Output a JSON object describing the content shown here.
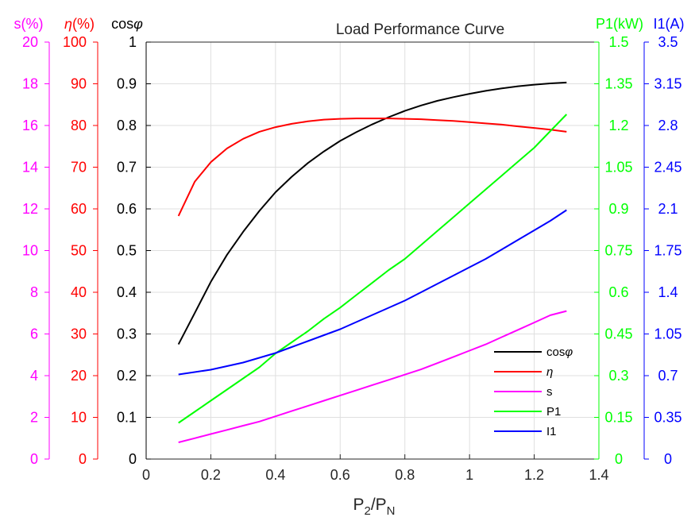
{
  "chart_data": {
    "type": "line",
    "title": "Load Performance Curve",
    "xlabel": "P",
    "xlabel_sub1": "2",
    "xlabel_sep": "/P",
    "xlabel_sub2": "N",
    "xlim": [
      0,
      1.4
    ],
    "xticks": [
      "0",
      "0.2",
      "0.4",
      "0.6",
      "0.8",
      "1",
      "1.2",
      "1.4"
    ],
    "grid": true,
    "legend_position": "bottom-right",
    "axes": {
      "s": {
        "label": "s(%)",
        "color": "#ff00ff",
        "range": [
          0,
          20
        ],
        "ticks": [
          "0",
          "2",
          "4",
          "6",
          "8",
          "10",
          "12",
          "14",
          "16",
          "18",
          "20"
        ]
      },
      "eta": {
        "label_symbol": "η",
        "label_suffix": "(%)",
        "color": "#ff0000",
        "range": [
          0,
          100
        ],
        "ticks": [
          "0",
          "10",
          "20",
          "30",
          "40",
          "50",
          "60",
          "70",
          "80",
          "90",
          "100"
        ]
      },
      "cosphi": {
        "label_prefix": "cos",
        "label_symbol": "φ",
        "color": "#000000",
        "range": [
          0,
          1
        ],
        "ticks": [
          "0",
          "0.1",
          "0.2",
          "0.3",
          "0.4",
          "0.5",
          "0.6",
          "0.7",
          "0.8",
          "0.9",
          "1"
        ]
      },
      "p1": {
        "label": "P1(kW)",
        "color": "#00ff00",
        "range": [
          0,
          1.5
        ],
        "ticks": [
          "0",
          "0.15",
          "0.3",
          "0.45",
          "0.6",
          "0.75",
          "0.9",
          "1.05",
          "1.2",
          "1.35",
          "1.5"
        ]
      },
      "i1": {
        "label": "I1(A)",
        "color": "#0000ff",
        "range": [
          0,
          3.5
        ],
        "ticks": [
          "0",
          "0.35",
          "0.7",
          "1.05",
          "1.4",
          "1.75",
          "2.1",
          "2.45",
          "2.8",
          "3.15",
          "3.5"
        ]
      }
    },
    "x": [
      0.1,
      0.15,
      0.2,
      0.25,
      0.3,
      0.35,
      0.4,
      0.45,
      0.5,
      0.55,
      0.6,
      0.65,
      0.7,
      0.75,
      0.8,
      0.85,
      0.9,
      0.95,
      1.0,
      1.05,
      1.1,
      1.15,
      1.2,
      1.25,
      1.3
    ],
    "series": [
      {
        "key": "cosphi",
        "name": "cosφ",
        "legend_prefix": "cos",
        "legend_symbol": "φ",
        "axis": "cosphi",
        "color": "#000000",
        "values": [
          0.275,
          0.35,
          0.425,
          0.49,
          0.545,
          0.595,
          0.64,
          0.677,
          0.71,
          0.738,
          0.763,
          0.784,
          0.803,
          0.82,
          0.835,
          0.848,
          0.859,
          0.868,
          0.876,
          0.883,
          0.889,
          0.894,
          0.898,
          0.901,
          0.903
        ]
      },
      {
        "key": "eta",
        "name": "η",
        "legend_symbol": "η",
        "axis": "eta",
        "color": "#ff0000",
        "values": [
          58.3,
          66.5,
          71.2,
          74.5,
          76.8,
          78.5,
          79.6,
          80.4,
          81.0,
          81.4,
          81.6,
          81.7,
          81.7,
          81.7,
          81.6,
          81.5,
          81.3,
          81.1,
          80.8,
          80.5,
          80.2,
          79.8,
          79.4,
          79.0,
          78.5
        ]
      },
      {
        "key": "s",
        "name": "s",
        "axis": "s",
        "color": "#ff00ff",
        "values": [
          0.8,
          1.0,
          1.2,
          1.4,
          1.6,
          1.8,
          2.05,
          2.3,
          2.55,
          2.8,
          3.05,
          3.3,
          3.55,
          3.8,
          4.05,
          4.3,
          4.6,
          4.9,
          5.2,
          5.5,
          5.85,
          6.2,
          6.55,
          6.9,
          7.1
        ]
      },
      {
        "key": "p1",
        "name": "P1",
        "axis": "p1",
        "color": "#00ff00",
        "values": [
          0.13,
          0.17,
          0.21,
          0.25,
          0.29,
          0.33,
          0.38,
          0.42,
          0.46,
          0.505,
          0.545,
          0.59,
          0.635,
          0.68,
          0.72,
          0.77,
          0.82,
          0.87,
          0.92,
          0.97,
          1.02,
          1.07,
          1.12,
          1.18,
          1.24
        ]
      },
      {
        "key": "i1",
        "name": "I1",
        "axis": "i1",
        "color": "#0000ff",
        "values": [
          0.71,
          0.73,
          0.75,
          0.78,
          0.81,
          0.85,
          0.89,
          0.94,
          0.99,
          1.04,
          1.09,
          1.15,
          1.21,
          1.27,
          1.33,
          1.4,
          1.47,
          1.54,
          1.61,
          1.68,
          1.76,
          1.84,
          1.92,
          2.0,
          2.09
        ]
      }
    ]
  }
}
